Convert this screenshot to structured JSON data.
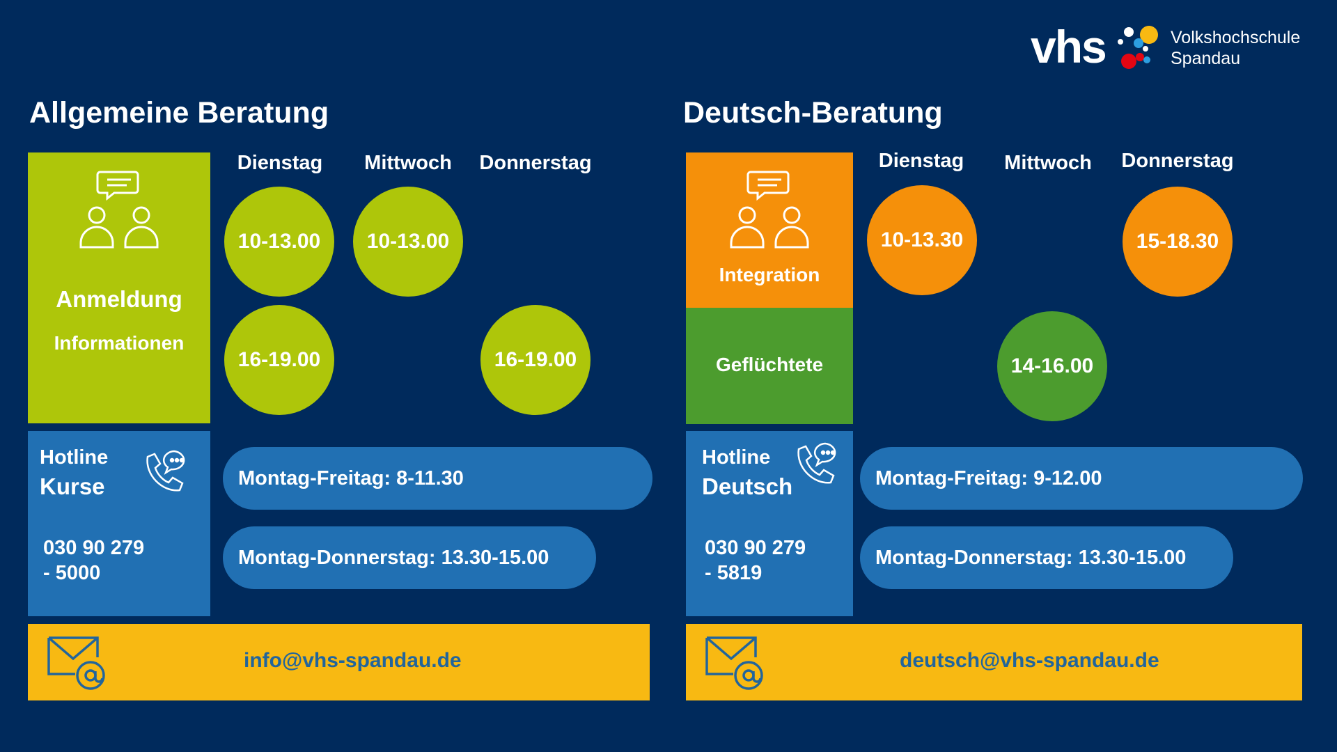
{
  "logo": {
    "wordmark": "vhs",
    "line1": "Volkshochschule",
    "line2": "Spandau"
  },
  "colors": {
    "background": "#002a5c",
    "lime": "#aec60a",
    "orange": "#f5900a",
    "green": "#4c9c2e",
    "blue": "#2170b3",
    "yellow": "#f8b912",
    "mail_text": "#22659c"
  },
  "allgemein": {
    "heading": "Allgemeine Beratung",
    "box": {
      "icon": "people-chat-icon",
      "title": "Anmeldung",
      "subtitle": "Informationen"
    },
    "days": [
      "Dienstag",
      "Mittwoch",
      "Donnerstag"
    ],
    "slots": {
      "tue_am": "10-13.00",
      "wed_am": "10-13.00",
      "tue_pm": "16-19.00",
      "thu_pm": "16-19.00"
    },
    "hotline": {
      "label1": "Hotline",
      "label2": "Kurse",
      "icon": "phone-chat-icon",
      "phone1": "030 90 279",
      "phone2": "- 5000"
    },
    "hours": [
      "Montag-Freitag:  8-11.30",
      "Montag-Donnerstag: 13.30-15.00"
    ],
    "email": {
      "icon": "mail-at-icon",
      "address": "info@vhs-spandau.de"
    }
  },
  "deutsch": {
    "heading": "Deutsch-Beratung",
    "box_integration": {
      "icon": "people-chat-icon",
      "title": "Integration"
    },
    "box_refugees": {
      "title": "Geflüchtete"
    },
    "days": [
      "Dienstag",
      "Mittwoch",
      "Donnerstag"
    ],
    "slots": {
      "tue": "10-13.30",
      "thu": "15-18.30",
      "wed": "14-16.00"
    },
    "hotline": {
      "label1": "Hotline",
      "label2": "Deutsch",
      "icon": "phone-chat-icon",
      "phone1": "030 90 279",
      "phone2": "- 5819"
    },
    "hours": [
      "Montag-Freitag:  9-12.00",
      "Montag-Donnerstag: 13.30-15.00"
    ],
    "email": {
      "icon": "mail-at-icon",
      "address": "deutsch@vhs-spandau.de"
    }
  }
}
